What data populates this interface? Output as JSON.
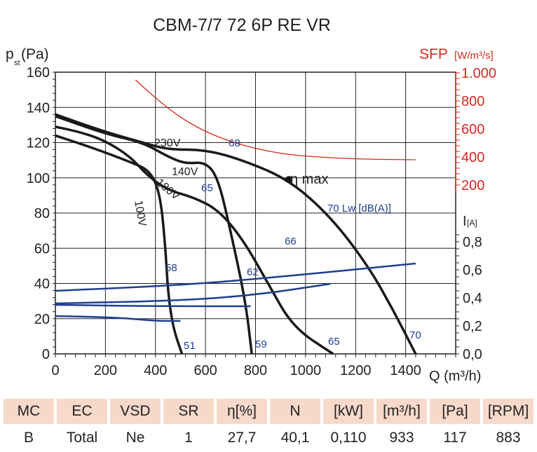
{
  "chart_data": {
    "type": "line",
    "title": "CBM-7/7 72 6P RE VR",
    "xlabel": "Q (m³/h)",
    "ylabel": "pst(Pa)",
    "ylabel_main": "p",
    "ylabel_sub": "st",
    "ylabel_unit": "(Pa)",
    "y2label": "SFP",
    "y2unit": "[W/m³/s]",
    "y3label": "I",
    "y3unit": "[A]",
    "xlim": [
      0,
      1600
    ],
    "ylim": [
      0,
      160
    ],
    "y2lim": [
      0,
      1000
    ],
    "y3lim": [
      0,
      1.0
    ],
    "xticks": [
      "0",
      "200",
      "400",
      "600",
      "800",
      "1000",
      "1200",
      "1400"
    ],
    "yticks": [
      "0",
      "20",
      "40",
      "60",
      "80",
      "100",
      "120",
      "140",
      "160"
    ],
    "y2ticks": [
      "200",
      "400",
      "600",
      "800",
      "1.000"
    ],
    "y3ticks": [
      "0,0",
      "0,2",
      "0,4",
      "0,6",
      "0,8"
    ],
    "grid": true,
    "series": [
      {
        "name": "230V",
        "axis": "pst",
        "color": "#1a1a1a",
        "x": [
          0,
          200,
          350,
          450,
          600,
          750,
          933,
          1100,
          1250,
          1350,
          1440
        ],
        "y": [
          136,
          126,
          120,
          116,
          116,
          110,
          99,
          78,
          50,
          25,
          0
        ]
      },
      {
        "name": "140V",
        "axis": "pst",
        "color": "#1a1a1a",
        "x": [
          0,
          200,
          350,
          450,
          520,
          600,
          650,
          700,
          760,
          785
        ],
        "y": [
          135,
          125,
          120,
          112,
          108,
          109,
          100,
          70,
          30,
          0
        ]
      },
      {
        "name": "180V",
        "axis": "pst",
        "color": "#1a1a1a",
        "x": [
          0,
          100,
          200,
          300,
          370,
          450,
          550,
          650,
          750,
          850,
          950,
          1110
        ],
        "y": [
          129,
          126,
          121,
          112,
          101,
          93,
          89,
          82,
          65,
          40,
          15,
          0
        ]
      },
      {
        "name": "100V",
        "axis": "pst",
        "color": "#1a1a1a",
        "x": [
          0,
          150,
          300,
          380,
          420,
          440,
          450,
          470,
          506
        ],
        "y": [
          124,
          117,
          109,
          104,
          90,
          60,
          35,
          15,
          0
        ]
      },
      {
        "name": "SFP",
        "axis": "sfp",
        "color": "#d42a1e",
        "x": [
          320,
          400,
          500,
          600,
          700,
          800,
          900,
          1000,
          1200,
          1440
        ],
        "y": [
          950,
          820,
          680,
          580,
          510,
          460,
          425,
          405,
          385,
          380
        ]
      },
      {
        "name": "I 230V",
        "axis": "current",
        "color": "#1f3f8f",
        "x": [
          0,
          500,
          900,
          1440
        ],
        "y": [
          0.45,
          0.49,
          0.55,
          0.645
        ]
      },
      {
        "name": "I 180V",
        "axis": "current",
        "color": "#1f3f8f",
        "x": [
          0,
          500,
          800,
          1100
        ],
        "y": [
          0.36,
          0.38,
          0.42,
          0.5
        ]
      },
      {
        "name": "I 140V",
        "axis": "current",
        "color": "#1f3f8f",
        "x": [
          0,
          400,
          780
        ],
        "y": [
          0.35,
          0.34,
          0.34
        ]
      },
      {
        "name": "I 100V",
        "axis": "current",
        "color": "#1f3f8f",
        "x": [
          0,
          250,
          400,
          500
        ],
        "y": [
          0.27,
          0.26,
          0.235,
          0.235
        ]
      }
    ],
    "eta_max": {
      "label": "η max",
      "x": 933,
      "y": 99
    },
    "annotations": [
      "230V",
      "140V",
      "180V",
      "100V",
      "68",
      "65",
      "66",
      "70 Lw [dB(A)]",
      "58",
      "62",
      "51",
      "59",
      "65",
      "70"
    ]
  },
  "table": {
    "headers": [
      "MC",
      "EC",
      "VSD",
      "SR",
      "η[%]",
      "N",
      "[kW]",
      "[m³/h]",
      "[Pa]",
      "[RPM]"
    ],
    "values": [
      "B",
      "Total",
      "Ne",
      "1",
      "27,7",
      "40,1",
      "0,110",
      "933",
      "117",
      "883"
    ]
  }
}
